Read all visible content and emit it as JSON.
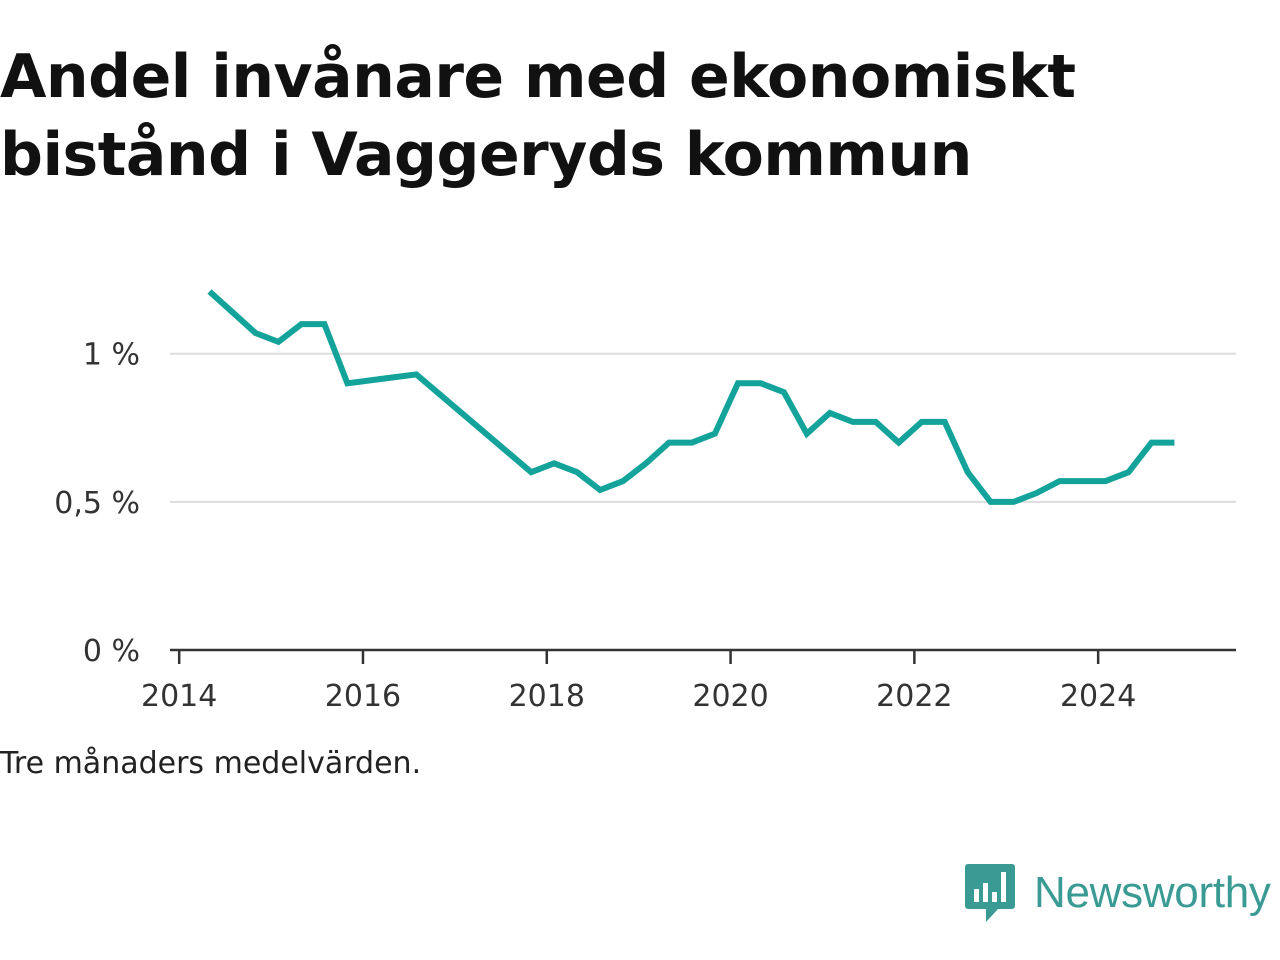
{
  "title": "Andel invånare med ekonomiskt bistånd i Vaggeryds kommun",
  "note": "Tre månaders medelvärden.",
  "brand": {
    "name": "Newsworthy",
    "logo_icon": "bar-chart-speech-bubble-icon"
  },
  "colors": {
    "line": "#13a39a",
    "grid": "#dddddd",
    "axis": "#333333",
    "logo": "#3a9b94"
  },
  "chart_data": {
    "type": "line",
    "title": "Andel invånare med ekonomiskt bistånd i Vaggeryds kommun",
    "xlabel": "",
    "ylabel": "",
    "xlim": [
      2013.9,
      2025.5
    ],
    "ylim": [
      0,
      1.35
    ],
    "x_ticks": [
      {
        "value": 2014,
        "label": "2014"
      },
      {
        "value": 2016,
        "label": "2016"
      },
      {
        "value": 2018,
        "label": "2018"
      },
      {
        "value": 2020,
        "label": "2020"
      },
      {
        "value": 2022,
        "label": "2022"
      },
      {
        "value": 2024,
        "label": "2024"
      }
    ],
    "y_ticks": [
      {
        "value": 0,
        "label": "0 %"
      },
      {
        "value": 0.5,
        "label": "0,5 %"
      },
      {
        "value": 1,
        "label": "1 %"
      }
    ],
    "grid": true,
    "series": [
      {
        "name": "",
        "x": [
          2014.33,
          2014.83,
          2015.08,
          2015.33,
          2015.58,
          2015.83,
          2016.58,
          2017.83,
          2018.08,
          2018.33,
          2018.58,
          2018.83,
          2019.08,
          2019.33,
          2019.58,
          2019.83,
          2020.08,
          2020.33,
          2020.58,
          2020.83,
          2021.08,
          2021.33,
          2021.58,
          2021.83,
          2022.08,
          2022.33,
          2022.58,
          2022.83,
          2023.08,
          2023.33,
          2023.58,
          2023.83,
          2024.08,
          2024.33,
          2024.58,
          2024.83
        ],
        "y": [
          1.21,
          1.07,
          1.04,
          1.1,
          1.1,
          0.9,
          0.93,
          0.6,
          0.63,
          0.6,
          0.54,
          0.57,
          0.63,
          0.7,
          0.7,
          0.73,
          0.9,
          0.9,
          0.87,
          0.73,
          0.8,
          0.77,
          0.77,
          0.7,
          0.77,
          0.77,
          0.6,
          0.5,
          0.5,
          0.53,
          0.57,
          0.57,
          0.57,
          0.6,
          0.7,
          0.7
        ]
      }
    ]
  }
}
